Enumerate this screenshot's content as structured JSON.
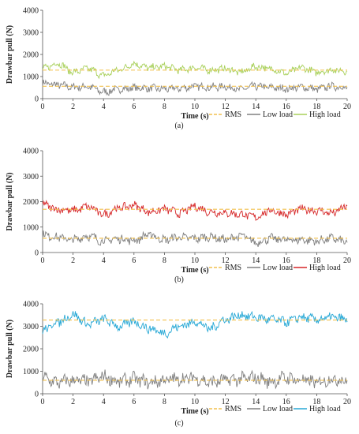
{
  "chart_data": [
    {
      "type": "line",
      "panel_label": "(a)",
      "xlabel": "Time (s)",
      "ylabel": "Drawbar pull (N)",
      "xlim": [
        0,
        20
      ],
      "ylim": [
        0,
        4000
      ],
      "xticks": [
        "0",
        "2",
        "4",
        "6",
        "8",
        "10",
        "12",
        "14",
        "16",
        "18",
        "20"
      ],
      "yticks": [
        "0",
        "1000",
        "2000",
        "3000",
        "4000"
      ],
      "x": [
        0,
        1,
        2,
        3,
        4,
        5,
        6,
        7,
        8,
        9,
        10,
        11,
        12,
        13,
        14,
        15,
        16,
        17,
        18,
        19,
        20
      ],
      "series": [
        {
          "name": "RMS",
          "style": "dashed",
          "color": "#f2c14e",
          "rms_values": [
            560,
            1290
          ]
        },
        {
          "name": "Low load",
          "color": "#808080",
          "values": [
            700,
            620,
            520,
            540,
            300,
            420,
            480,
            470,
            430,
            460,
            560,
            520,
            540,
            420,
            560,
            500,
            450,
            520,
            430,
            560,
            500
          ]
        },
        {
          "name": "High load",
          "color": "#a8d05a",
          "values": [
            1350,
            1600,
            1200,
            1350,
            1050,
            1300,
            1580,
            1400,
            1450,
            1300,
            1400,
            1300,
            1350,
            1200,
            1450,
            1350,
            1150,
            1400,
            1200,
            1300,
            1250
          ]
        }
      ]
    },
    {
      "type": "line",
      "panel_label": "(b)",
      "xlabel": "Time (s)",
      "ylabel": "Drawbar pull (N)",
      "xlim": [
        0,
        20
      ],
      "ylim": [
        0,
        4000
      ],
      "xticks": [
        "0",
        "2",
        "4",
        "6",
        "8",
        "10",
        "12",
        "14",
        "16",
        "18",
        "20"
      ],
      "yticks": [
        "0",
        "1000",
        "2000",
        "3000",
        "4000"
      ],
      "x": [
        0,
        1,
        2,
        3,
        4,
        5,
        6,
        7,
        8,
        9,
        10,
        11,
        12,
        13,
        14,
        15,
        16,
        17,
        18,
        19,
        20
      ],
      "series": [
        {
          "name": "RMS",
          "style": "dashed",
          "color": "#f2c14e",
          "rms_values": [
            560,
            1700
          ]
        },
        {
          "name": "Low load",
          "color": "#808080",
          "values": [
            700,
            600,
            500,
            650,
            450,
            550,
            480,
            700,
            500,
            600,
            550,
            620,
            500,
            650,
            400,
            550,
            500,
            500,
            450,
            550,
            400
          ]
        },
        {
          "name": "High load",
          "color": "#d62728",
          "values": [
            1900,
            1700,
            1650,
            1800,
            1500,
            1750,
            1850,
            1600,
            1700,
            1550,
            1800,
            1600,
            1550,
            1500,
            1400,
            1650,
            1500,
            1700,
            1650,
            1550,
            1800
          ]
        }
      ]
    },
    {
      "type": "line",
      "panel_label": "(c)",
      "xlabel": "Time (s)",
      "ylabel": "Drawbar pull (N)",
      "xlim": [
        0,
        20
      ],
      "ylim": [
        0,
        4000
      ],
      "xticks": [
        "0",
        "2",
        "4",
        "6",
        "8",
        "10",
        "12",
        "14",
        "16",
        "18",
        "20"
      ],
      "yticks": [
        "0",
        "1000",
        "2000",
        "3000",
        "4000"
      ],
      "x": [
        0,
        1,
        2,
        3,
        4,
        5,
        6,
        7,
        8,
        9,
        10,
        11,
        12,
        13,
        14,
        15,
        16,
        17,
        18,
        19,
        20
      ],
      "series": [
        {
          "name": "RMS",
          "style": "dashed",
          "color": "#f2c14e",
          "rms_values": [
            600,
            3280
          ]
        },
        {
          "name": "Low load",
          "color": "#808080",
          "values": [
            700,
            500,
            600,
            550,
            750,
            550,
            650,
            500,
            600,
            650,
            700,
            500,
            600,
            650,
            700,
            550,
            700,
            600,
            500,
            650,
            600
          ]
        },
        {
          "name": "High load",
          "color": "#29a9d6",
          "values": [
            2800,
            3200,
            3500,
            3100,
            3300,
            3000,
            3200,
            2900,
            2700,
            3000,
            3200,
            2900,
            3300,
            3500,
            3400,
            3300,
            3200,
            3400,
            3300,
            3400,
            3300
          ]
        }
      ]
    }
  ]
}
